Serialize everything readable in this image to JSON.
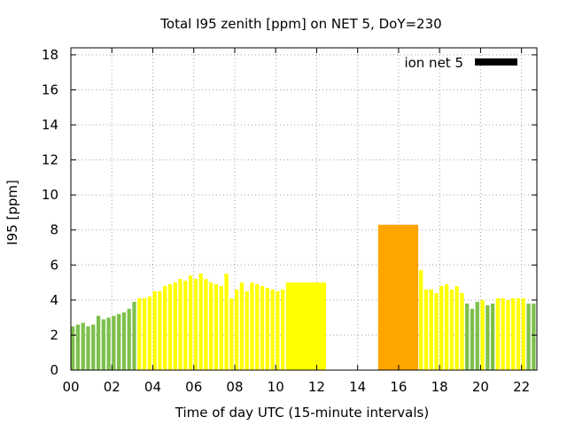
{
  "chart_data": {
    "type": "bar",
    "title": "Total I95 zenith [ppm] on NET 5, DoY=230",
    "xlabel": "Time of day UTC (15-minute intervals)",
    "ylabel": "I95 [ppm]",
    "xlim": [
      0,
      22.75
    ],
    "ylim": [
      0,
      18.4
    ],
    "x_ticks": [
      0,
      2,
      4,
      6,
      8,
      10,
      12,
      14,
      16,
      18,
      20,
      22
    ],
    "x_tick_labels": [
      "00",
      "02",
      "04",
      "06",
      "08",
      "10",
      "12",
      "14",
      "16",
      "18",
      "20",
      "22"
    ],
    "y_ticks": [
      0,
      2,
      4,
      6,
      8,
      10,
      12,
      14,
      16,
      18
    ],
    "y_tick_labels": [
      "0",
      "2",
      "4",
      "6",
      "8",
      "10",
      "12",
      "14",
      "16",
      "18"
    ],
    "grid": true,
    "legend": {
      "label": "ion net 5",
      "placement": "top-right",
      "swatch_color": "#000000"
    },
    "colors": {
      "green": "#7dc04b",
      "yellow": "#ffff00",
      "orange": "#ffa500"
    },
    "series": [
      {
        "values": [
          {
            "x": 0.0,
            "y": 2.5,
            "color": "green"
          },
          {
            "x": 0.25,
            "y": 2.6,
            "color": "green"
          },
          {
            "x": 0.5,
            "y": 2.7,
            "color": "green"
          },
          {
            "x": 0.75,
            "y": 2.5,
            "color": "green"
          },
          {
            "x": 1.0,
            "y": 2.6,
            "color": "green"
          },
          {
            "x": 1.25,
            "y": 3.1,
            "color": "green"
          },
          {
            "x": 1.5,
            "y": 2.9,
            "color": "green"
          },
          {
            "x": 1.75,
            "y": 3.0,
            "color": "green"
          },
          {
            "x": 2.0,
            "y": 3.1,
            "color": "green"
          },
          {
            "x": 2.25,
            "y": 3.2,
            "color": "green"
          },
          {
            "x": 2.5,
            "y": 3.3,
            "color": "green"
          },
          {
            "x": 2.75,
            "y": 3.5,
            "color": "green"
          },
          {
            "x": 3.0,
            "y": 3.9,
            "color": "green"
          },
          {
            "x": 3.25,
            "y": 4.1,
            "color": "yellow"
          },
          {
            "x": 3.5,
            "y": 4.1,
            "color": "yellow"
          },
          {
            "x": 3.75,
            "y": 4.2,
            "color": "yellow"
          },
          {
            "x": 4.0,
            "y": 4.5,
            "color": "yellow"
          },
          {
            "x": 4.25,
            "y": 4.5,
            "color": "yellow"
          },
          {
            "x": 4.5,
            "y": 4.8,
            "color": "yellow"
          },
          {
            "x": 4.75,
            "y": 4.9,
            "color": "yellow"
          },
          {
            "x": 5.0,
            "y": 5.0,
            "color": "yellow"
          },
          {
            "x": 5.25,
            "y": 5.2,
            "color": "yellow"
          },
          {
            "x": 5.5,
            "y": 5.1,
            "color": "yellow"
          },
          {
            "x": 5.75,
            "y": 5.4,
            "color": "yellow"
          },
          {
            "x": 6.0,
            "y": 5.2,
            "color": "yellow"
          },
          {
            "x": 6.25,
            "y": 5.5,
            "color": "yellow"
          },
          {
            "x": 6.5,
            "y": 5.2,
            "color": "yellow"
          },
          {
            "x": 6.75,
            "y": 5.0,
            "color": "yellow"
          },
          {
            "x": 7.0,
            "y": 4.9,
            "color": "yellow"
          },
          {
            "x": 7.25,
            "y": 4.8,
            "color": "yellow"
          },
          {
            "x": 7.5,
            "y": 5.5,
            "color": "yellow"
          },
          {
            "x": 7.75,
            "y": 4.1,
            "color": "yellow"
          },
          {
            "x": 8.0,
            "y": 4.6,
            "color": "yellow"
          },
          {
            "x": 8.25,
            "y": 5.0,
            "color": "yellow"
          },
          {
            "x": 8.5,
            "y": 4.5,
            "color": "yellow"
          },
          {
            "x": 8.75,
            "y": 5.0,
            "color": "yellow"
          },
          {
            "x": 9.0,
            "y": 4.9,
            "color": "yellow"
          },
          {
            "x": 9.25,
            "y": 4.8,
            "color": "yellow"
          },
          {
            "x": 9.5,
            "y": 4.7,
            "color": "yellow"
          },
          {
            "x": 9.75,
            "y": 4.6,
            "color": "yellow"
          },
          {
            "x": 10.0,
            "y": 4.5,
            "color": "yellow"
          },
          {
            "x": 10.25,
            "y": 4.6,
            "color": "yellow"
          },
          {
            "x": 10.5,
            "x_end": 12.5,
            "y": 5.0,
            "color": "yellow"
          },
          {
            "x": 15.0,
            "x_end": 17.0,
            "y": 8.3,
            "color": "orange"
          },
          {
            "x": 17.0,
            "y": 5.7,
            "color": "yellow"
          },
          {
            "x": 17.25,
            "y": 4.6,
            "color": "yellow"
          },
          {
            "x": 17.5,
            "y": 4.6,
            "color": "yellow"
          },
          {
            "x": 17.75,
            "y": 4.4,
            "color": "yellow"
          },
          {
            "x": 18.0,
            "y": 4.8,
            "color": "yellow"
          },
          {
            "x": 18.25,
            "y": 4.9,
            "color": "yellow"
          },
          {
            "x": 18.5,
            "y": 4.6,
            "color": "yellow"
          },
          {
            "x": 18.75,
            "y": 4.8,
            "color": "yellow"
          },
          {
            "x": 19.0,
            "y": 4.4,
            "color": "yellow"
          },
          {
            "x": 19.25,
            "y": 3.8,
            "color": "green"
          },
          {
            "x": 19.5,
            "y": 3.5,
            "color": "green"
          },
          {
            "x": 19.75,
            "y": 3.9,
            "color": "green"
          },
          {
            "x": 20.0,
            "y": 4.0,
            "color": "yellow"
          },
          {
            "x": 20.25,
            "y": 3.7,
            "color": "green"
          },
          {
            "x": 20.5,
            "y": 3.8,
            "color": "green"
          },
          {
            "x": 20.75,
            "y": 4.1,
            "color": "yellow"
          },
          {
            "x": 21.0,
            "y": 4.1,
            "color": "yellow"
          },
          {
            "x": 21.25,
            "y": 4.0,
            "color": "yellow"
          },
          {
            "x": 21.5,
            "y": 4.1,
            "color": "yellow"
          },
          {
            "x": 21.75,
            "y": 4.1,
            "color": "yellow"
          },
          {
            "x": 22.0,
            "y": 4.1,
            "color": "yellow"
          },
          {
            "x": 22.25,
            "y": 3.8,
            "color": "green"
          },
          {
            "x": 22.5,
            "y": 3.8,
            "color": "green"
          }
        ]
      }
    ]
  }
}
